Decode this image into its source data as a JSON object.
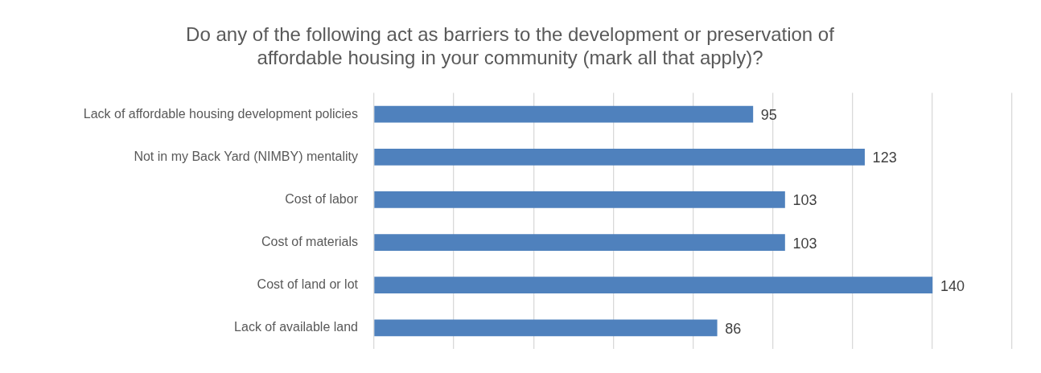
{
  "chart_data": {
    "type": "bar",
    "orientation": "horizontal",
    "title": "Do any of the following act as barriers to the development or preservation of affordable housing in your community (mark all that apply)?",
    "categories": [
      "Lack of affordable housing development policies",
      "Not in my Back Yard (NIMBY) mentality",
      "Cost of labor",
      "Cost of materials",
      "Cost of land or lot",
      "Lack of available land"
    ],
    "values": [
      95,
      123,
      103,
      103,
      140,
      86
    ],
    "color": "#4f81bd",
    "grid": "x",
    "tick_labels": "y",
    "data_labels": true
  }
}
